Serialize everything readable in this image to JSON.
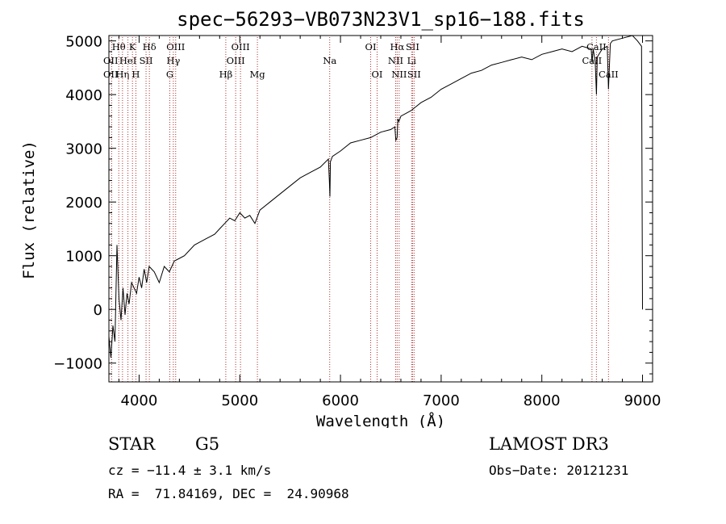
{
  "chart_data": {
    "type": "line",
    "title": "spec−56293−VB073N23V1_sp16−188.fits",
    "xlabel": "Wavelength (Å)",
    "ylabel": "Flux (relative)",
    "xlim": [
      3700,
      9100
    ],
    "ylim": [
      -1350,
      5100
    ],
    "xticks": [
      4000,
      5000,
      6000,
      7000,
      8000,
      9000
    ],
    "yticks": [
      -1000,
      0,
      1000,
      2000,
      3000,
      4000,
      5000
    ],
    "ytick_labels": [
      "−1000",
      "0",
      "1000",
      "2000",
      "3000",
      "4000",
      "5000"
    ],
    "grid": false,
    "series": [
      {
        "name": "spectrum",
        "x": [
          3700,
          3720,
          3740,
          3760,
          3780,
          3800,
          3820,
          3840,
          3860,
          3880,
          3900,
          3925,
          3950,
          3975,
          4000,
          4025,
          4050,
          4075,
          4100,
          4150,
          4200,
          4250,
          4300,
          4350,
          4400,
          4450,
          4500,
          4550,
          4600,
          4650,
          4700,
          4750,
          4800,
          4850,
          4900,
          4950,
          5000,
          5050,
          5100,
          5150,
          5200,
          5300,
          5400,
          5500,
          5600,
          5700,
          5800,
          5880,
          5890,
          5895,
          5900,
          5920,
          6000,
          6100,
          6200,
          6300,
          6400,
          6500,
          6540,
          6550,
          6563,
          6570,
          6580,
          6600,
          6700,
          6800,
          6900,
          7000,
          7100,
          7200,
          7300,
          7400,
          7500,
          7600,
          7700,
          7800,
          7900,
          8000,
          8100,
          8200,
          8300,
          8400,
          8490,
          8498,
          8510,
          8530,
          8542,
          8550,
          8600,
          8650,
          8662,
          8680,
          8700,
          8800,
          8900,
          8950,
          8990,
          9000
        ],
        "values": [
          -500,
          -900,
          -300,
          -600,
          1200,
          200,
          -200,
          400,
          -100,
          300,
          100,
          500,
          400,
          300,
          600,
          400,
          750,
          500,
          800,
          700,
          500,
          800,
          700,
          900,
          950,
          1000,
          1100,
          1200,
          1250,
          1300,
          1350,
          1400,
          1500,
          1600,
          1700,
          1650,
          1800,
          1700,
          1750,
          1600,
          1850,
          2000,
          2150,
          2300,
          2450,
          2550,
          2650,
          2800,
          2400,
          2100,
          2750,
          2850,
          2950,
          3100,
          3150,
          3200,
          3300,
          3350,
          3400,
          3150,
          3200,
          3550,
          3500,
          3600,
          3700,
          3850,
          3950,
          4100,
          4200,
          4300,
          4400,
          4450,
          4550,
          4600,
          4650,
          4700,
          4650,
          4750,
          4800,
          4850,
          4800,
          4900,
          4850,
          4600,
          4850,
          4600,
          4000,
          4700,
          4850,
          4900,
          4100,
          4950,
          5000,
          5050,
          5100,
          5000,
          4900,
          0
        ]
      }
    ],
    "lines": [
      {
        "name": "Ca K",
        "x": 3934,
        "labels": [
          {
            "t": "K",
            "row": 0,
            "anchor": "middle"
          }
        ]
      },
      {
        "name": "Ca H",
        "x": 3968,
        "labels": [
          {
            "t": "H",
            "row": 2,
            "anchor": "middle"
          }
        ]
      },
      {
        "name": "Hθ",
        "x": 3798,
        "labels": [
          {
            "t": "Hθ",
            "row": 0,
            "anchor": "middle"
          }
        ]
      },
      {
        "name": "OII",
        "x": 3727,
        "labels": [
          {
            "t": "OII",
            "row": 1,
            "anchor": "start",
            "px": 128
          },
          {
            "t": "OII",
            "row": 2,
            "anchor": "start",
            "px": 128
          }
        ]
      },
      {
        "name": "Hη",
        "x": 3835,
        "labels": [
          {
            "t": "Hη",
            "row": 2,
            "anchor": "middle"
          }
        ]
      },
      {
        "name": "HeI",
        "x": 3889,
        "labels": [
          {
            "t": "HeI",
            "row": 1,
            "anchor": "middle"
          }
        ]
      },
      {
        "name": "SII",
        "x": 4069,
        "labels": [
          {
            "t": "SII",
            "row": 1,
            "anchor": "middle"
          }
        ]
      },
      {
        "name": "Hδ",
        "x": 4102,
        "labels": [
          {
            "t": "Hδ",
            "row": 0,
            "anchor": "middle"
          }
        ]
      },
      {
        "name": "G",
        "x": 4305,
        "labels": [
          {
            "t": "G",
            "row": 2,
            "anchor": "middle"
          }
        ]
      },
      {
        "name": "Hγ",
        "x": 4340,
        "labels": [
          {
            "t": "Hγ",
            "row": 1,
            "anchor": "middle"
          }
        ]
      },
      {
        "name": "OIII 4363",
        "x": 4363,
        "labels": [
          {
            "t": "OIII",
            "row": 0,
            "anchor": "middle"
          }
        ]
      },
      {
        "name": "Hβ",
        "x": 4861,
        "labels": [
          {
            "t": "Hβ",
            "row": 2,
            "anchor": "middle"
          }
        ]
      },
      {
        "name": "OIII 4959",
        "x": 4959,
        "labels": [
          {
            "t": "OIII",
            "row": 1,
            "anchor": "middle"
          }
        ]
      },
      {
        "name": "OIII 5007",
        "x": 5007,
        "labels": [
          {
            "t": "OIII",
            "row": 0,
            "anchor": "middle"
          }
        ]
      },
      {
        "name": "Mg",
        "x": 5175,
        "labels": [
          {
            "t": "Mg",
            "row": 2,
            "anchor": "middle"
          }
        ]
      },
      {
        "name": "Na",
        "x": 5893,
        "labels": [
          {
            "t": "Na",
            "row": 1,
            "anchor": "middle"
          }
        ]
      },
      {
        "name": "OI 6300",
        "x": 6300,
        "labels": [
          {
            "t": "OI",
            "row": 0,
            "anchor": "middle"
          }
        ]
      },
      {
        "name": "OI 6364",
        "x": 6364,
        "labels": [
          {
            "t": "OI",
            "row": 2,
            "anchor": "middle"
          }
        ]
      },
      {
        "name": "NII 6548",
        "x": 6548,
        "labels": [
          {
            "t": "NII",
            "row": 1,
            "anchor": "middle"
          }
        ]
      },
      {
        "name": "Hα",
        "x": 6563,
        "labels": [
          {
            "t": "Hα",
            "row": 0,
            "anchor": "middle"
          }
        ]
      },
      {
        "name": "NII 6583",
        "x": 6583,
        "labels": [
          {
            "t": "NII",
            "row": 2,
            "anchor": "middle"
          }
        ]
      },
      {
        "name": "Li",
        "x": 6707,
        "labels": [
          {
            "t": "Li",
            "row": 1,
            "anchor": "middle"
          }
        ]
      },
      {
        "name": "SII 6716",
        "x": 6716,
        "labels": [
          {
            "t": "SII",
            "row": 0,
            "anchor": "middle"
          }
        ]
      },
      {
        "name": "SII 6731",
        "x": 6731,
        "labels": [
          {
            "t": "SII",
            "row": 2,
            "anchor": "middle"
          }
        ]
      },
      {
        "name": "CaII 8498",
        "x": 8498,
        "labels": [
          {
            "t": "CaII",
            "row": 1,
            "anchor": "middle"
          }
        ]
      },
      {
        "name": "CaII 8542",
        "x": 8542,
        "labels": [
          {
            "t": "CaII",
            "row": 0,
            "anchor": "middle"
          }
        ]
      },
      {
        "name": "CaII 8662",
        "x": 8662,
        "labels": [
          {
            "t": "CaII",
            "row": 2,
            "anchor": "middle"
          }
        ]
      }
    ]
  },
  "info": {
    "class_label": "STAR",
    "subclass": "G5",
    "survey": "LAMOST DR3",
    "redshift": "cz = −11.4 ± 3.1 km/s",
    "obs_date": "Obs−Date: 20121231",
    "coords": "RA =  71.84169, DEC =  24.90968"
  },
  "colors": {
    "spectrum": "#000000",
    "line_marker": "#b03030",
    "frame": "#000000"
  }
}
